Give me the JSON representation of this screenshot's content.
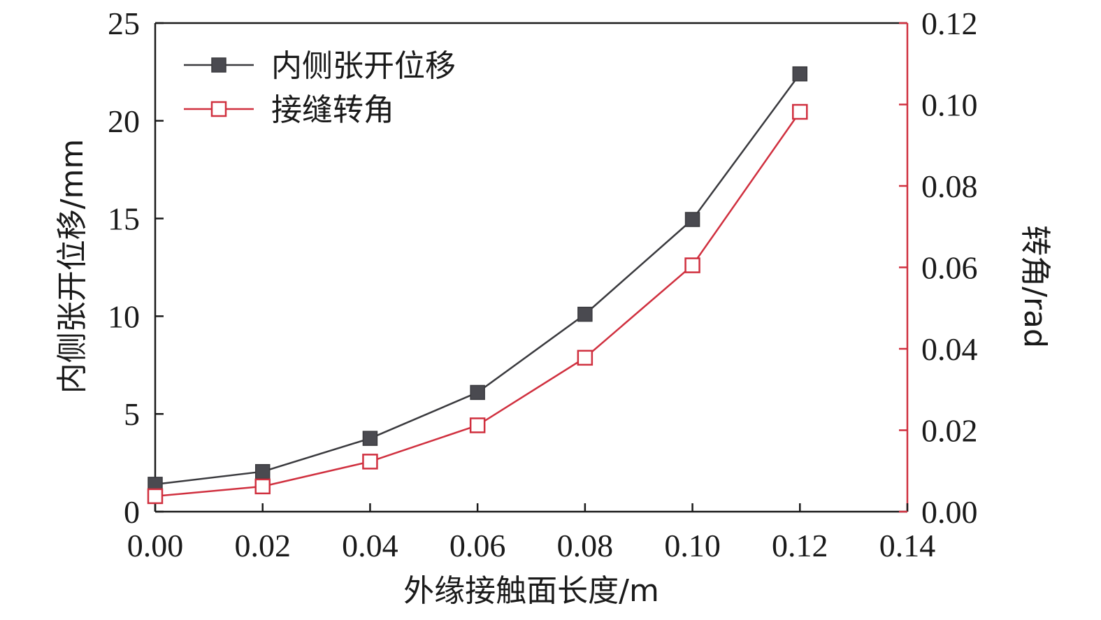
{
  "chart_data": {
    "type": "line",
    "x": [
      0.0,
      0.02,
      0.04,
      0.06,
      0.08,
      0.1,
      0.12
    ],
    "xlim": [
      0,
      0.14
    ],
    "xticks": [
      "0.00",
      "0.02",
      "0.04",
      "0.06",
      "0.08",
      "0.10",
      "0.12",
      "0.14"
    ],
    "xlabel": "外缘接触面长度/m",
    "ylabel": "内侧张开位移/mm",
    "ylim": [
      0,
      25
    ],
    "yticks": [
      "0",
      "5",
      "10",
      "15",
      "20",
      "25"
    ],
    "y2label": "转角/rad",
    "y2lim": [
      0,
      0.12
    ],
    "y2ticks": [
      "0.00",
      "0.02",
      "0.04",
      "0.06",
      "0.08",
      "0.10",
      "0.12"
    ],
    "grid": false,
    "legend_position": "top-left",
    "series": [
      {
        "name": "内侧张开位移",
        "axis": "left",
        "marker": "filled-square",
        "color": "#3a3a3e",
        "marker_color": "#4a4a50",
        "values": [
          1.4,
          2.05,
          3.75,
          6.1,
          10.1,
          14.95,
          22.4
        ]
      },
      {
        "name": "接缝转角",
        "axis": "right",
        "marker": "open-square",
        "color": "#d0303f",
        "values": [
          0.0038,
          0.0062,
          0.0123,
          0.0212,
          0.0378,
          0.0605,
          0.0982
        ]
      }
    ]
  }
}
